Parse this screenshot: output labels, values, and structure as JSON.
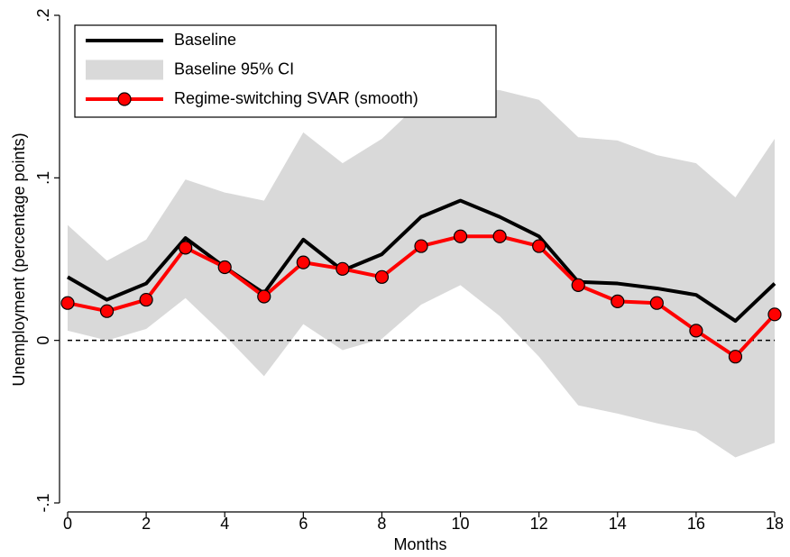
{
  "chart_data": {
    "type": "line",
    "x_label": "Months",
    "y_label": "Unemployment (percentage points)",
    "x": [
      0,
      1,
      2,
      3,
      4,
      5,
      6,
      7,
      8,
      9,
      10,
      11,
      12,
      13,
      14,
      15,
      16,
      17,
      18
    ],
    "series": [
      {
        "name": "Baseline",
        "color": "#000000",
        "values": [
          0.039,
          0.025,
          0.035,
          0.063,
          0.045,
          0.029,
          0.062,
          0.043,
          0.053,
          0.076,
          0.086,
          0.076,
          0.064,
          0.036,
          0.035,
          0.032,
          0.028,
          0.012,
          0.035
        ]
      },
      {
        "name": "Baseline 95% CI",
        "color": "#d9d9d9",
        "style": "band",
        "upper": [
          0.071,
          0.049,
          0.062,
          0.099,
          0.091,
          0.086,
          0.128,
          0.109,
          0.124,
          0.147,
          0.155,
          0.154,
          0.148,
          0.125,
          0.123,
          0.114,
          0.109,
          0.088,
          0.124
        ],
        "lower": [
          0.006,
          0.0,
          0.007,
          0.026,
          0.003,
          -0.022,
          0.01,
          -0.006,
          0.001,
          0.022,
          0.034,
          0.015,
          -0.01,
          -0.04,
          -0.045,
          -0.051,
          -0.056,
          -0.072,
          -0.063
        ]
      },
      {
        "name": "Regime-switching SVAR (smooth)",
        "color": "#ff0000",
        "marker": true,
        "values": [
          0.023,
          0.018,
          0.025,
          0.057,
          0.045,
          0.027,
          0.048,
          0.044,
          0.039,
          0.058,
          0.064,
          0.064,
          0.058,
          0.034,
          0.024,
          0.023,
          0.006,
          -0.01,
          0.016
        ]
      }
    ],
    "reference_line": 0,
    "xlim": [
      0,
      18
    ],
    "xticks": [
      0,
      2,
      4,
      6,
      8,
      10,
      12,
      14,
      16,
      18
    ],
    "ylim": [
      -0.1,
      0.2
    ],
    "yticks": [
      {
        "value": -0.1,
        "label": "-.1"
      },
      0,
      {
        "value": 0.1,
        "label": ".1"
      },
      {
        "value": 0.2,
        "label": ".2"
      }
    ],
    "legend": "top-left"
  }
}
